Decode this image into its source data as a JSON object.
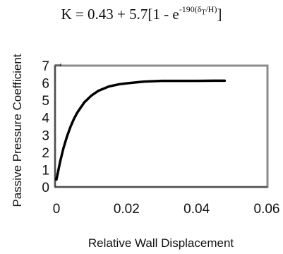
{
  "title": {
    "lead": "K = 0.43 + 5.7[1 - e",
    "exp_coef": "-190(δ",
    "exp_sub": "T",
    "exp_tail": "/H)",
    "tail": "]"
  },
  "chart_data": {
    "type": "line",
    "title": "K = 0.43 + 5.7[1 - e^{-190(δ_T/H)}]",
    "xlabel": "Relative Wall Displacement",
    "ylabel": "Passive Pressure Coefficient",
    "xlim": [
      0,
      0.06
    ],
    "ylim": [
      0,
      7
    ],
    "xticks": [
      "0",
      "0.02",
      "0.04",
      "0.06"
    ],
    "yticks": [
      "0",
      "1",
      "2",
      "3",
      "4",
      "5",
      "6",
      "7"
    ],
    "grid": false,
    "series": [
      {
        "color": "#000000",
        "x": [
          0,
          0.001,
          0.002,
          0.003,
          0.004,
          0.005,
          0.006,
          0.008,
          0.01,
          0.012,
          0.015,
          0.018,
          0.02,
          0.025,
          0.03,
          0.035,
          0.04,
          0.045,
          0.048
        ],
        "y": [
          0.43,
          1.42,
          2.24,
          2.91,
          3.47,
          3.93,
          4.31,
          4.89,
          5.28,
          5.55,
          5.8,
          5.93,
          5.98,
          6.08,
          6.12,
          6.12,
          6.12,
          6.13,
          6.13
        ]
      }
    ]
  }
}
